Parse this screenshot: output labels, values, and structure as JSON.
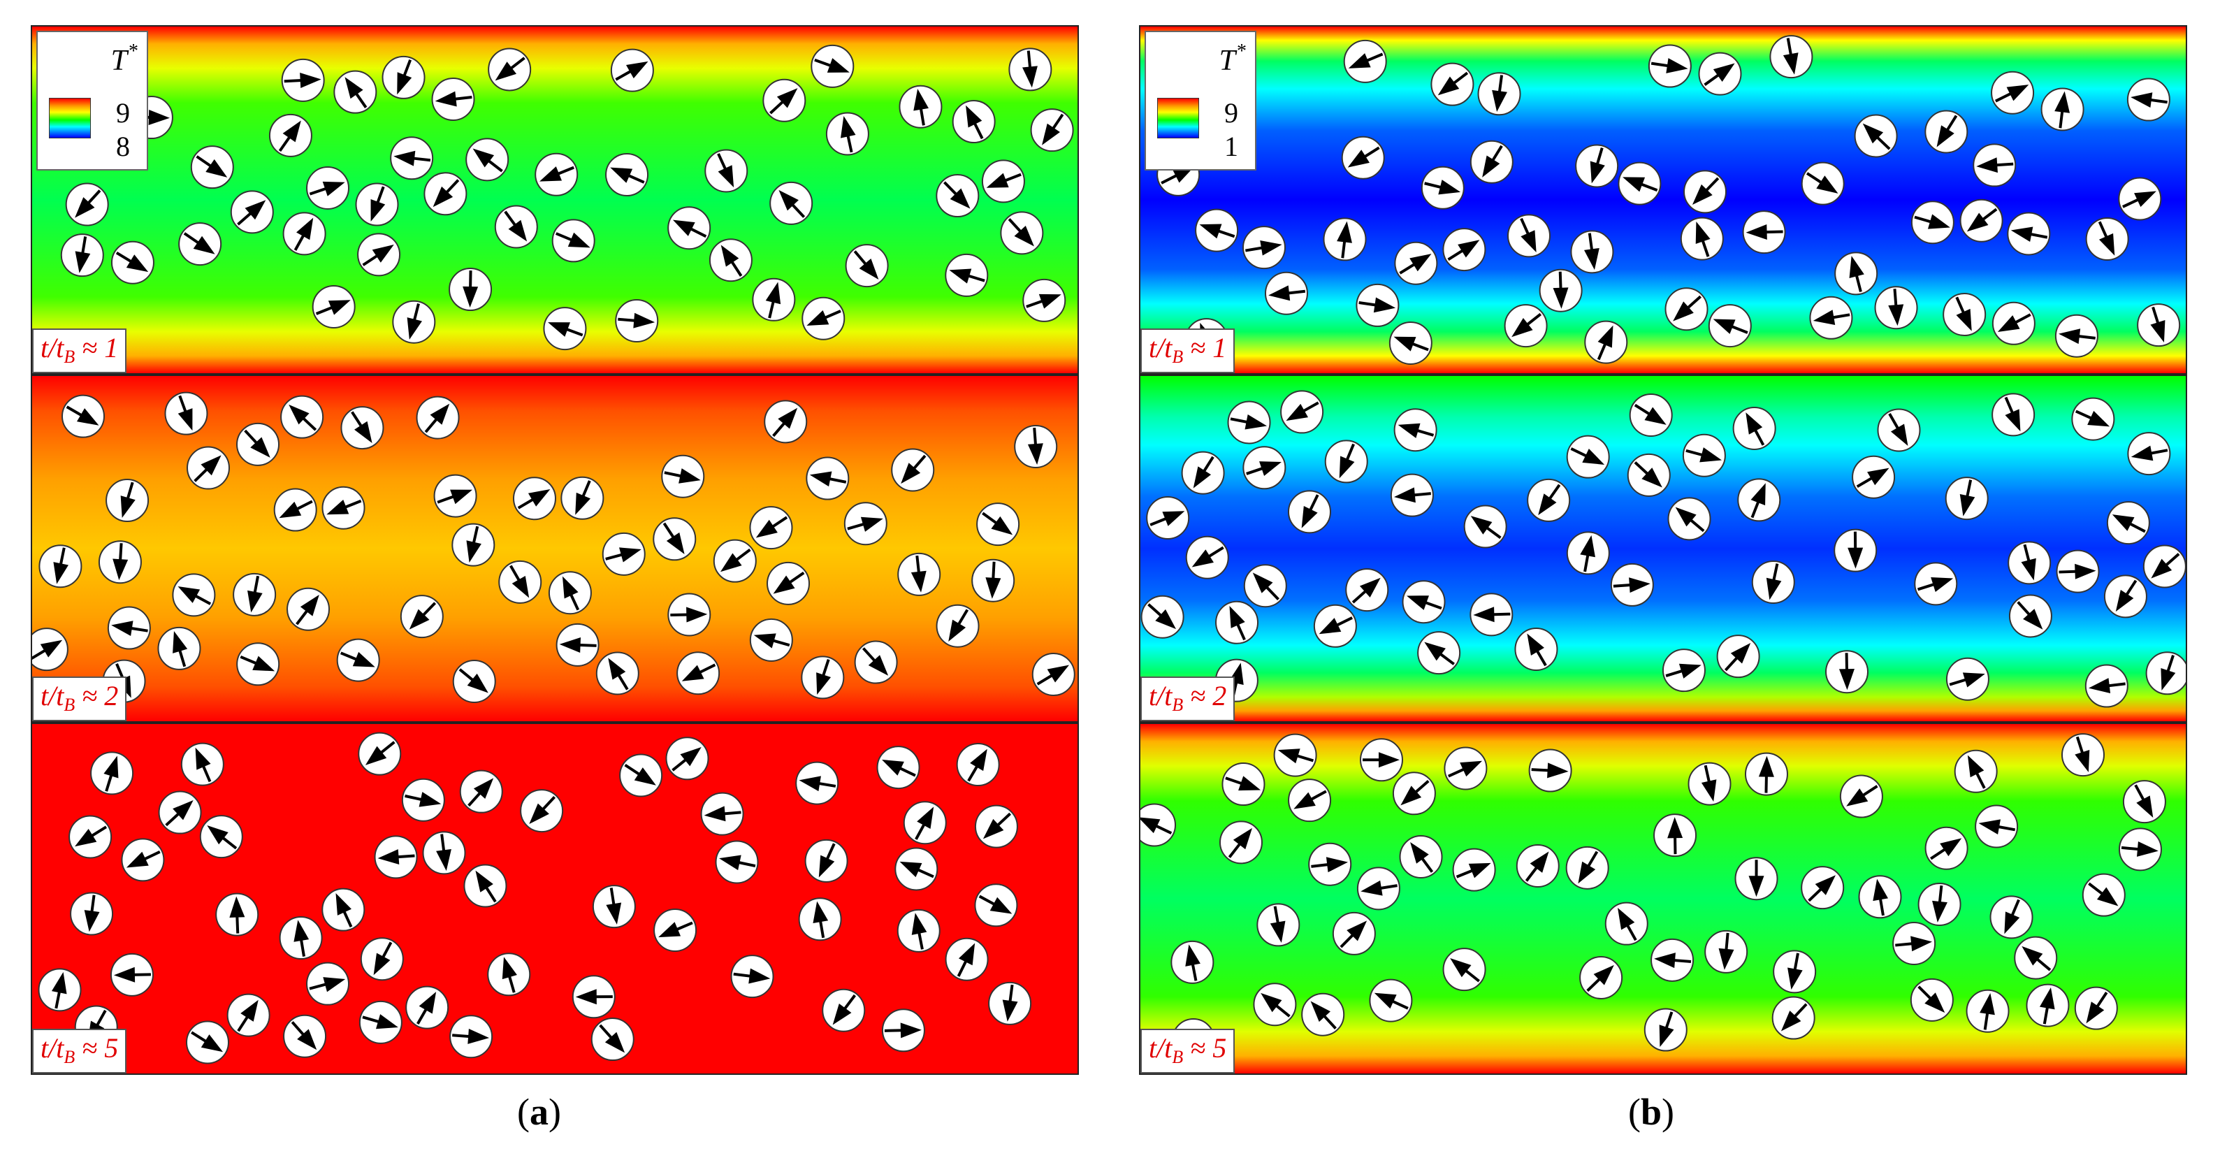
{
  "legend": {
    "title": "T",
    "title_sup": "*"
  },
  "columns": [
    {
      "id": "a",
      "caption": "a",
      "legend": {
        "max_label": "9",
        "min_label": "8"
      },
      "panels": [
        {
          "time_label": "t/t",
          "time_sub": "B",
          "time_value": " ≈ 1",
          "colormap": "green_band"
        },
        {
          "time_label": "t/t",
          "time_sub": "B",
          "time_value": " ≈ 2",
          "colormap": "orange_band"
        },
        {
          "time_label": "t/t",
          "time_sub": "B",
          "time_value": " ≈ 5",
          "colormap": "uniform_red"
        }
      ]
    },
    {
      "id": "b",
      "caption": "b",
      "legend": {
        "max_label": "9",
        "min_label": "1"
      },
      "panels": [
        {
          "time_label": "t/t",
          "time_sub": "B",
          "time_value": " ≈ 1",
          "colormap": "blue_band"
        },
        {
          "time_label": "t/t",
          "time_sub": "B",
          "time_value": " ≈ 2",
          "colormap": "blue_cyan_band"
        },
        {
          "time_label": "t/t",
          "time_sub": "B",
          "time_value": " ≈ 5",
          "colormap": "green_band_b"
        }
      ]
    }
  ],
  "colors": {
    "time_label": "#e00000",
    "particle_fill": "#ffffff",
    "arrow": "#000000"
  }
}
